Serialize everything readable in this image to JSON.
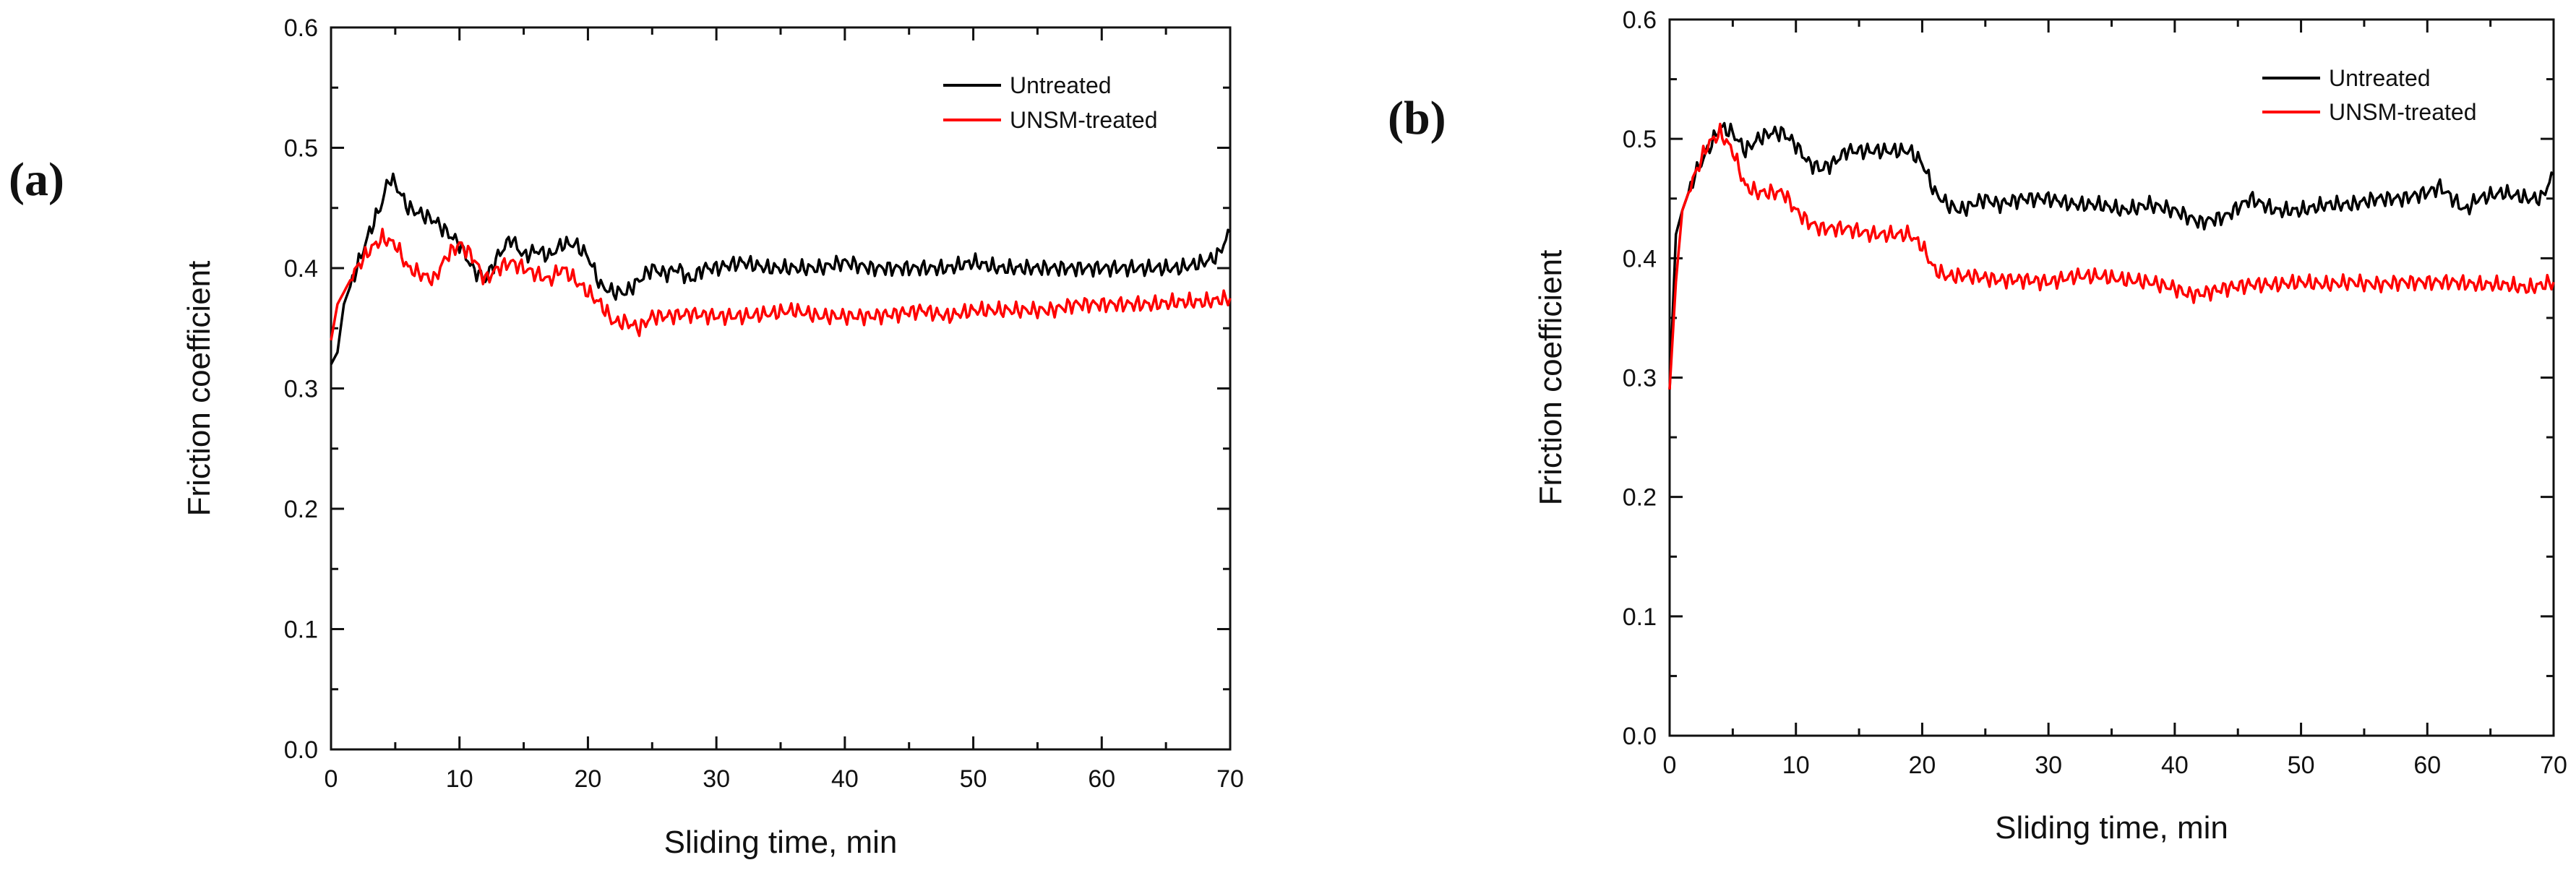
{
  "chart_data": [
    {
      "type": "line",
      "panel_label": "(a)",
      "xlabel": "Sliding time, min",
      "ylabel": "Friction coefficient",
      "xlim": [
        0,
        70
      ],
      "ylim": [
        0,
        0.6
      ],
      "xticks": [
        "0",
        "10",
        "20",
        "30",
        "40",
        "50",
        "60",
        "70"
      ],
      "yticks": [
        "0.0",
        "0.1",
        "0.2",
        "0.3",
        "0.4",
        "0.5",
        "0.6"
      ],
      "legend_position": "top-right",
      "series": [
        {
          "name": "Untreated",
          "color": "#000000",
          "x": [
            0,
            0.5,
            1,
            2,
            3,
            4,
            4.5,
            5,
            6,
            7,
            8,
            9,
            10,
            11,
            12,
            13,
            14,
            15,
            16,
            17,
            18,
            19,
            20,
            21,
            22,
            23,
            24,
            25,
            26,
            27,
            28,
            29,
            30,
            32,
            34,
            36,
            38,
            40,
            42,
            44,
            46,
            48,
            50,
            52,
            54,
            56,
            58,
            60,
            62,
            64,
            66,
            68,
            69,
            70
          ],
          "y": [
            0.32,
            0.33,
            0.37,
            0.4,
            0.43,
            0.455,
            0.475,
            0.47,
            0.45,
            0.445,
            0.44,
            0.43,
            0.42,
            0.4,
            0.39,
            0.41,
            0.425,
            0.41,
            0.415,
            0.41,
            0.42,
            0.42,
            0.41,
            0.385,
            0.38,
            0.38,
            0.39,
            0.4,
            0.395,
            0.4,
            0.39,
            0.4,
            0.4,
            0.405,
            0.4,
            0.4,
            0.4,
            0.405,
            0.4,
            0.4,
            0.4,
            0.4,
            0.405,
            0.4,
            0.4,
            0.4,
            0.4,
            0.4,
            0.4,
            0.4,
            0.4,
            0.405,
            0.41,
            0.43
          ]
        },
        {
          "name": "UNSM-treated",
          "color": "#ff0000",
          "x": [
            0,
            0.5,
            1,
            2,
            3,
            4,
            5,
            6,
            7,
            8,
            9,
            10,
            11,
            12,
            13,
            14,
            15,
            16,
            17,
            18,
            19,
            20,
            21,
            22,
            23,
            24,
            25,
            26,
            28,
            30,
            32,
            34,
            36,
            38,
            40,
            42,
            44,
            46,
            48,
            50,
            52,
            54,
            56,
            58,
            60,
            62,
            64,
            66,
            68,
            70
          ],
          "y": [
            0.34,
            0.37,
            0.38,
            0.4,
            0.415,
            0.425,
            0.42,
            0.4,
            0.395,
            0.39,
            0.41,
            0.42,
            0.41,
            0.39,
            0.4,
            0.405,
            0.4,
            0.395,
            0.39,
            0.4,
            0.39,
            0.38,
            0.37,
            0.355,
            0.355,
            0.35,
            0.36,
            0.36,
            0.362,
            0.36,
            0.36,
            0.362,
            0.365,
            0.36,
            0.36,
            0.36,
            0.362,
            0.365,
            0.36,
            0.365,
            0.365,
            0.365,
            0.365,
            0.37,
            0.37,
            0.37,
            0.37,
            0.372,
            0.372,
            0.375
          ]
        }
      ]
    },
    {
      "type": "line",
      "panel_label": "(b)",
      "xlabel": "Sliding time, min",
      "ylabel": "Friction coefficient",
      "xlim": [
        0,
        70
      ],
      "ylim": [
        0,
        0.6
      ],
      "xticks": [
        "0",
        "10",
        "20",
        "30",
        "40",
        "50",
        "60",
        "70"
      ],
      "yticks": [
        "0.0",
        "0.1",
        "0.2",
        "0.3",
        "0.4",
        "0.5",
        "0.6"
      ],
      "legend_position": "top-right",
      "series": [
        {
          "name": "Untreated",
          "color": "#000000",
          "x": [
            0,
            0.5,
            1,
            2,
            3,
            4,
            5,
            6,
            7,
            8,
            9,
            10,
            11,
            12,
            13,
            14,
            15,
            16,
            17,
            18,
            19,
            20,
            21,
            22,
            23,
            24,
            25,
            26,
            28,
            30,
            32,
            34,
            36,
            38,
            40,
            42,
            44,
            46,
            48,
            50,
            52,
            54,
            56,
            58,
            60,
            61,
            62,
            63,
            64,
            66,
            68,
            69,
            70
          ],
          "y": [
            0.29,
            0.42,
            0.44,
            0.47,
            0.49,
            0.51,
            0.505,
            0.49,
            0.5,
            0.505,
            0.505,
            0.495,
            0.48,
            0.475,
            0.48,
            0.49,
            0.49,
            0.49,
            0.49,
            0.49,
            0.49,
            0.48,
            0.455,
            0.445,
            0.44,
            0.445,
            0.45,
            0.445,
            0.45,
            0.45,
            0.445,
            0.445,
            0.44,
            0.445,
            0.44,
            0.43,
            0.435,
            0.45,
            0.44,
            0.44,
            0.445,
            0.445,
            0.45,
            0.45,
            0.455,
            0.46,
            0.45,
            0.44,
            0.45,
            0.455,
            0.45,
            0.45,
            0.47
          ]
        },
        {
          "name": "UNSM-treated",
          "color": "#ff0000",
          "x": [
            0,
            0.5,
            1,
            2,
            3,
            4,
            5,
            6,
            7,
            8,
            9,
            10,
            11,
            12,
            14,
            16,
            18,
            19,
            20,
            21,
            22,
            24,
            26,
            28,
            30,
            32,
            34,
            36,
            38,
            40,
            41,
            42,
            44,
            46,
            48,
            50,
            52,
            54,
            56,
            58,
            60,
            62,
            64,
            66,
            68,
            70
          ],
          "y": [
            0.29,
            0.38,
            0.44,
            0.47,
            0.495,
            0.505,
            0.49,
            0.46,
            0.455,
            0.455,
            0.455,
            0.44,
            0.43,
            0.425,
            0.425,
            0.42,
            0.42,
            0.42,
            0.41,
            0.39,
            0.385,
            0.385,
            0.382,
            0.382,
            0.38,
            0.385,
            0.385,
            0.382,
            0.38,
            0.375,
            0.37,
            0.37,
            0.375,
            0.378,
            0.378,
            0.38,
            0.378,
            0.38,
            0.378,
            0.38,
            0.38,
            0.38,
            0.378,
            0.378,
            0.375,
            0.38
          ]
        }
      ]
    }
  ]
}
